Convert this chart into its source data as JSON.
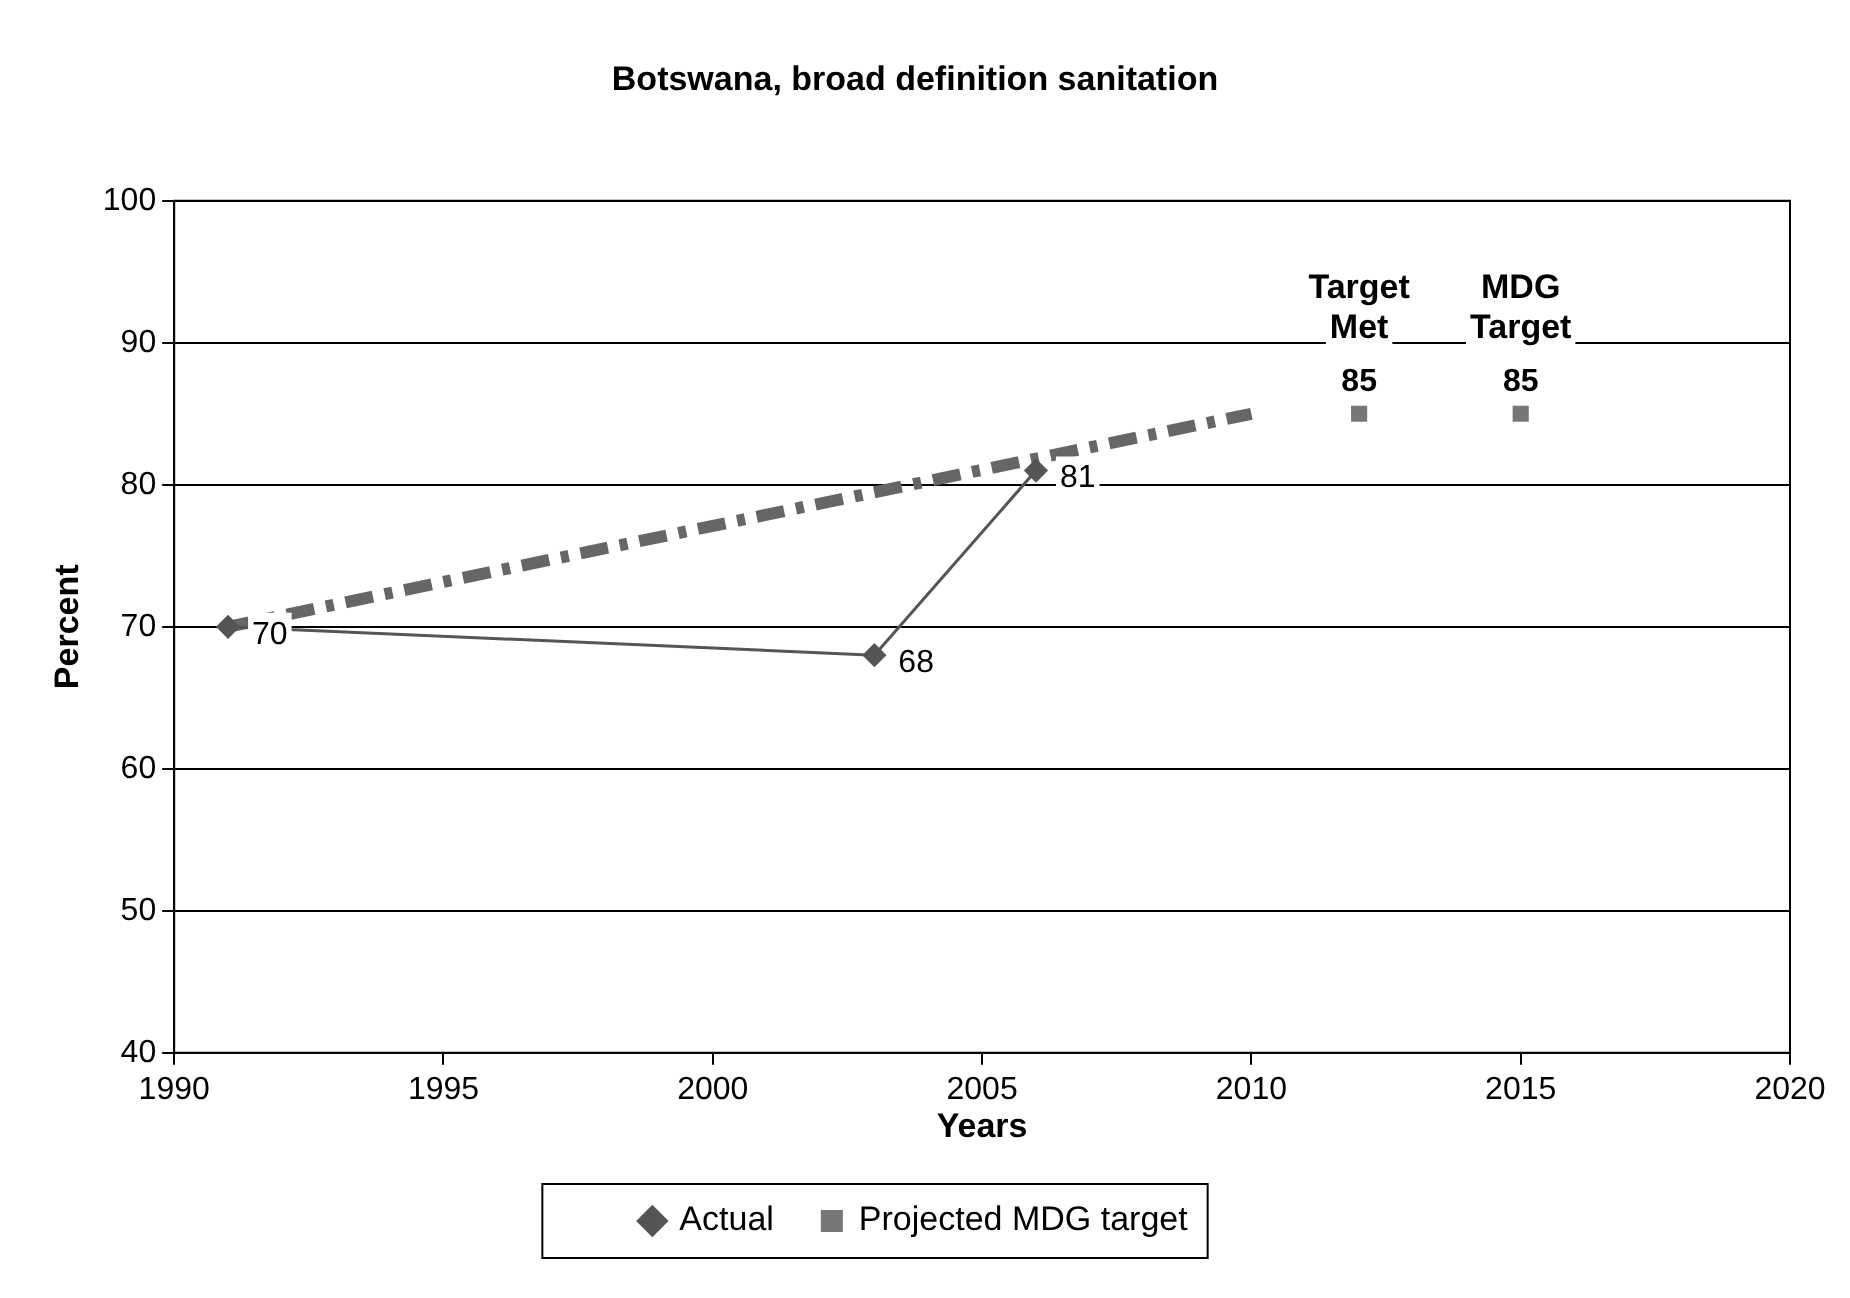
{
  "chart_data": {
    "type": "line",
    "title": "Botswana, broad definition sanitation",
    "xlabel": "Years",
    "ylabel": "Percent",
    "xlim": [
      1990,
      2020
    ],
    "xticks": [
      1990,
      1995,
      2000,
      2005,
      2010,
      2015,
      2020
    ],
    "ylim": [
      40,
      100
    ],
    "yticks": [
      40,
      50,
      60,
      70,
      80,
      90,
      100
    ],
    "grid": "y",
    "legend": "bottom",
    "series": [
      {
        "name": "Actual",
        "color": "#555555",
        "marker": "diamond",
        "x": [
          1991,
          2003,
          2006
        ],
        "values": [
          70,
          68,
          81
        ],
        "value_labels": [
          "70",
          "68",
          "81"
        ]
      },
      {
        "name": "Projected MDG target",
        "type": "scatter",
        "color": "#777777",
        "marker": "square",
        "x": [
          2012,
          2015
        ],
        "values": [
          85,
          85
        ],
        "value_labels": [
          "85",
          "85"
        ]
      },
      {
        "color": "#666666",
        "marker": "none",
        "line_style": "dashed",
        "x": [
          1991,
          2010
        ],
        "values": [
          70,
          85
        ]
      }
    ],
    "annotations": [
      {
        "text": "Target Met",
        "x": 2012,
        "y": 85
      },
      {
        "text": "MDG Target",
        "x": 2015,
        "y": 85
      }
    ]
  }
}
